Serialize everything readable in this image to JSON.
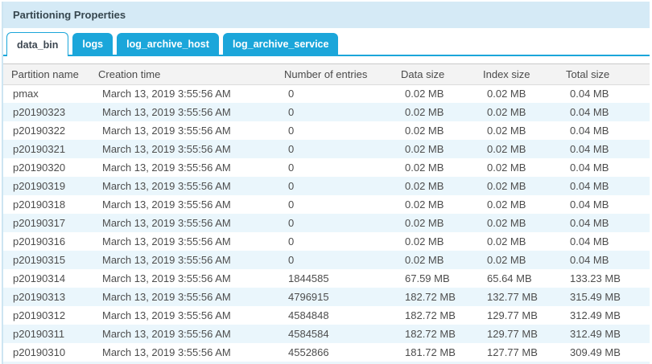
{
  "panel": {
    "title": "Partitioning Properties"
  },
  "tabs": {
    "active": "data_bin",
    "items": [
      {
        "label": "data_bin"
      },
      {
        "label": "logs"
      },
      {
        "label": "log_archive_host"
      },
      {
        "label": "log_archive_service"
      }
    ]
  },
  "table": {
    "columns": [
      {
        "key": "partition_name",
        "label": "Partition name"
      },
      {
        "key": "creation_time",
        "label": "Creation time"
      },
      {
        "key": "number_of_entries",
        "label": "Number of entries"
      },
      {
        "key": "data_size",
        "label": "Data size"
      },
      {
        "key": "index_size",
        "label": "Index size"
      },
      {
        "key": "total_size",
        "label": "Total size"
      }
    ],
    "rows": [
      [
        "pmax",
        "March 13, 2019 3:55:56 AM",
        "0",
        "0.02 MB",
        "0.02 MB",
        "0.04 MB"
      ],
      [
        "p20190323",
        "March 13, 2019 3:55:56 AM",
        "0",
        "0.02 MB",
        "0.02 MB",
        "0.04 MB"
      ],
      [
        "p20190322",
        "March 13, 2019 3:55:56 AM",
        "0",
        "0.02 MB",
        "0.02 MB",
        "0.04 MB"
      ],
      [
        "p20190321",
        "March 13, 2019 3:55:56 AM",
        "0",
        "0.02 MB",
        "0.02 MB",
        "0.04 MB"
      ],
      [
        "p20190320",
        "March 13, 2019 3:55:56 AM",
        "0",
        "0.02 MB",
        "0.02 MB",
        "0.04 MB"
      ],
      [
        "p20190319",
        "March 13, 2019 3:55:56 AM",
        "0",
        "0.02 MB",
        "0.02 MB",
        "0.04 MB"
      ],
      [
        "p20190318",
        "March 13, 2019 3:55:56 AM",
        "0",
        "0.02 MB",
        "0.02 MB",
        "0.04 MB"
      ],
      [
        "p20190317",
        "March 13, 2019 3:55:56 AM",
        "0",
        "0.02 MB",
        "0.02 MB",
        "0.04 MB"
      ],
      [
        "p20190316",
        "March 13, 2019 3:55:56 AM",
        "0",
        "0.02 MB",
        "0.02 MB",
        "0.04 MB"
      ],
      [
        "p20190315",
        "March 13, 2019 3:55:56 AM",
        "0",
        "0.02 MB",
        "0.02 MB",
        "0.04 MB"
      ],
      [
        "p20190314",
        "March 13, 2019 3:55:56 AM",
        "1844585",
        "67.59 MB",
        "65.64 MB",
        "133.23 MB"
      ],
      [
        "p20190313",
        "March 13, 2019 3:55:56 AM",
        "4796915",
        "182.72 MB",
        "132.77 MB",
        "315.49 MB"
      ],
      [
        "p20190312",
        "March 13, 2019 3:55:56 AM",
        "4584848",
        "182.72 MB",
        "129.77 MB",
        "312.49 MB"
      ],
      [
        "p20190311",
        "March 13, 2019 3:55:56 AM",
        "4584584",
        "182.72 MB",
        "129.77 MB",
        "312.49 MB"
      ],
      [
        "p20190310",
        "March 13, 2019 3:55:56 AM",
        "4552866",
        "181.72 MB",
        "127.77 MB",
        "309.49 MB"
      ]
    ]
  },
  "colors": {
    "accent_blue": "#1ba6da",
    "titlebar_bg": "#d5eaf6",
    "stripe_bg": "#eaf6fc",
    "header_bg": "#f3f3f3"
  }
}
